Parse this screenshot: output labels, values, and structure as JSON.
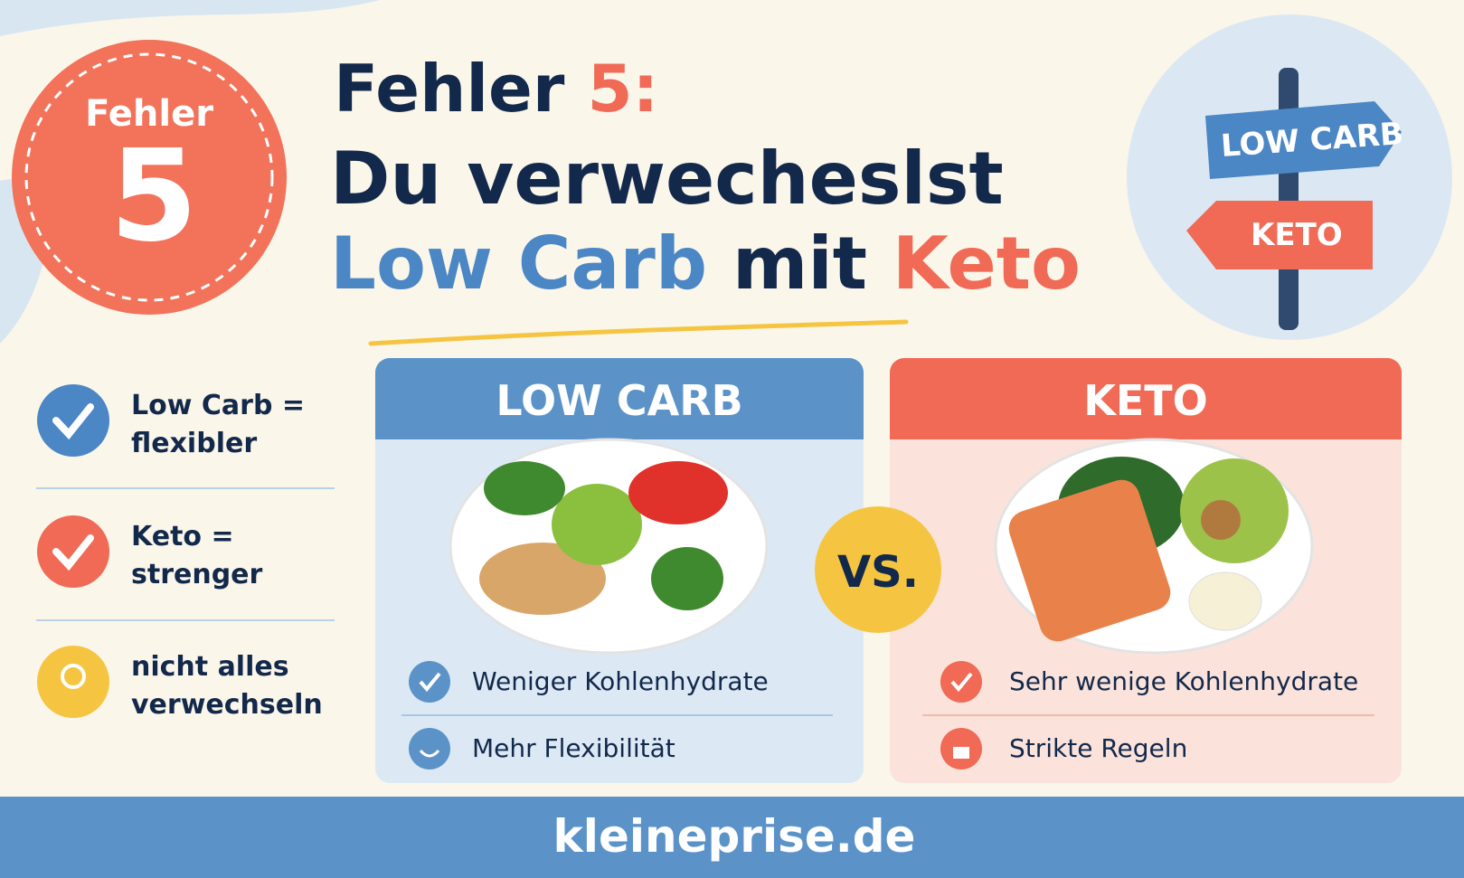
{
  "badge": {
    "label": "Fehler",
    "number": "5"
  },
  "title": {
    "line1": {
      "word": "Fehler",
      "number": "5:"
    },
    "line2": "Du verwecheslst",
    "line3": {
      "low_carb": "Low Carb",
      "mit": "mit",
      "keto": "Keto"
    }
  },
  "signpost": {
    "upper": "LOW CARB",
    "lower": "KETO"
  },
  "points": [
    {
      "line1": "Low Carb =",
      "line2": "flexibler"
    },
    {
      "line1": "Keto =",
      "line2": "strenger"
    },
    {
      "line1": "nicht alles",
      "line2": "verwechseln"
    }
  ],
  "cards": [
    {
      "heading": "LOW CARB",
      "features": [
        "Weniger Kohlenhydrate",
        "Mehr Flexibilität"
      ]
    },
    {
      "heading": "KETO",
      "features": [
        "Sehr wenige Kohlenhydrate",
        "Strikte Regeln"
      ]
    }
  ],
  "vs": "VS.",
  "footer": "kleineprise.de"
}
